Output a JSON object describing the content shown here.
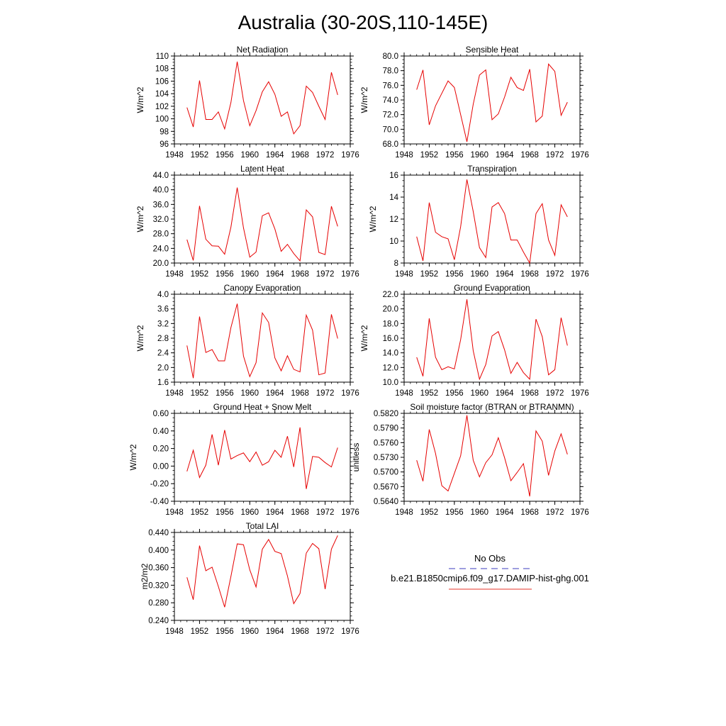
{
  "figure": {
    "title": "Australia (30-20S,110-145E)"
  },
  "legend": {
    "entries": [
      {
        "label": "No Obs",
        "color": "#3b3bbf",
        "dash": "dashed"
      },
      {
        "label": "b.e21.B1850cmip6.f09_g17.DAMIP-hist-ghg.001",
        "color": "#e6332a",
        "dash": "solid"
      }
    ]
  },
  "colors": {
    "series": "#e60000",
    "axis": "#000000"
  },
  "chart_data": [
    {
      "type": "line",
      "title": "Net Radiation",
      "ylabel": "W/m^2",
      "xlim": [
        1948,
        1976
      ],
      "ylim": [
        96,
        110
      ],
      "xticks": [
        "1948",
        "1952",
        "1956",
        "1960",
        "1964",
        "1968",
        "1972",
        "1976"
      ],
      "yticks": [
        "96",
        "98",
        "100",
        "102",
        "104",
        "106",
        "108",
        "110"
      ],
      "x": [
        1950,
        1951,
        1952,
        1953,
        1954,
        1955,
        1956,
        1957,
        1958,
        1959,
        1960,
        1961,
        1962,
        1963,
        1964,
        1965,
        1966,
        1967,
        1968,
        1969,
        1970,
        1971,
        1972,
        1973,
        1974
      ],
      "values": [
        101.8,
        98.7,
        106.1,
        99.9,
        99.9,
        101.1,
        98.4,
        102.6,
        109.1,
        102.9,
        98.9,
        101.3,
        104.3,
        105.9,
        103.9,
        100.4,
        101.1,
        97.6,
        98.9,
        105.2,
        104.2,
        102.0,
        99.9,
        107.4,
        103.8
      ],
      "grid": false
    },
    {
      "type": "line",
      "title": "Sensible Heat",
      "ylabel": "W/m^2",
      "xlim": [
        1948,
        1976
      ],
      "ylim": [
        68,
        80
      ],
      "xticks": [
        "1948",
        "1952",
        "1956",
        "1960",
        "1964",
        "1968",
        "1972",
        "1976"
      ],
      "yticks": [
        "68.0",
        "70.0",
        "72.0",
        "74.0",
        "76.0",
        "78.0",
        "80.0"
      ],
      "x": [
        1950,
        1951,
        1952,
        1953,
        1954,
        1955,
        1956,
        1957,
        1958,
        1959,
        1960,
        1961,
        1962,
        1963,
        1964,
        1965,
        1966,
        1967,
        1968,
        1969,
        1970,
        1971,
        1972,
        1973,
        1974
      ],
      "values": [
        75.4,
        78.1,
        70.6,
        73.2,
        74.9,
        76.6,
        75.7,
        72.0,
        68.3,
        73.4,
        77.4,
        78.1,
        71.3,
        72.1,
        74.4,
        77.1,
        75.7,
        75.3,
        78.2,
        71.0,
        71.8,
        78.9,
        77.9,
        71.9,
        73.7
      ],
      "grid": false
    },
    {
      "type": "line",
      "title": "Latent Heat",
      "ylabel": "W/m^2",
      "xlim": [
        1948,
        1976
      ],
      "ylim": [
        20,
        44
      ],
      "xticks": [
        "1948",
        "1952",
        "1956",
        "1960",
        "1964",
        "1968",
        "1972",
        "1976"
      ],
      "yticks": [
        "20.0",
        "24.0",
        "28.0",
        "32.0",
        "36.0",
        "40.0",
        "44.0"
      ],
      "x": [
        1950,
        1951,
        1952,
        1953,
        1954,
        1955,
        1956,
        1957,
        1958,
        1959,
        1960,
        1961,
        1962,
        1963,
        1964,
        1965,
        1966,
        1967,
        1968,
        1969,
        1970,
        1971,
        1972,
        1973,
        1974
      ],
      "values": [
        26.4,
        20.7,
        35.6,
        26.5,
        24.7,
        24.6,
        22.4,
        29.8,
        40.6,
        29.6,
        21.6,
        23.0,
        32.9,
        33.7,
        29.3,
        23.2,
        25.1,
        22.6,
        20.6,
        34.5,
        32.6,
        22.9,
        22.3,
        35.5,
        30.0
      ],
      "grid": false
    },
    {
      "type": "line",
      "title": "Transpiration",
      "ylabel": "W/m^2",
      "xlim": [
        1948,
        1976
      ],
      "ylim": [
        8,
        16
      ],
      "xticks": [
        "1948",
        "1952",
        "1956",
        "1960",
        "1964",
        "1968",
        "1972",
        "1976"
      ],
      "yticks": [
        "8",
        "10",
        "12",
        "14",
        "16"
      ],
      "x": [
        1950,
        1951,
        1952,
        1953,
        1954,
        1955,
        1956,
        1957,
        1958,
        1959,
        1960,
        1961,
        1962,
        1963,
        1964,
        1965,
        1966,
        1967,
        1968,
        1969,
        1970,
        1971,
        1972,
        1973,
        1974
      ],
      "values": [
        10.4,
        8.2,
        13.5,
        10.8,
        10.4,
        10.2,
        8.3,
        11.3,
        15.6,
        12.7,
        9.4,
        8.5,
        13.1,
        13.5,
        12.5,
        10.1,
        10.1,
        9.0,
        8.0,
        12.5,
        13.4,
        10.1,
        8.7,
        13.3,
        12.2
      ],
      "grid": false
    },
    {
      "type": "line",
      "title": "Canopy Evaporation",
      "ylabel": "W/m^2",
      "xlim": [
        1948,
        1976
      ],
      "ylim": [
        1.6,
        4.0
      ],
      "xticks": [
        "1948",
        "1952",
        "1956",
        "1960",
        "1964",
        "1968",
        "1972",
        "1976"
      ],
      "yticks": [
        "1.6",
        "2.0",
        "2.4",
        "2.8",
        "3.2",
        "3.6",
        "4.0"
      ],
      "x": [
        1950,
        1951,
        1952,
        1953,
        1954,
        1955,
        1956,
        1957,
        1958,
        1959,
        1960,
        1961,
        1962,
        1963,
        1964,
        1965,
        1966,
        1967,
        1968,
        1969,
        1970,
        1971,
        1972,
        1973,
        1974
      ],
      "values": [
        2.6,
        1.71,
        3.39,
        2.41,
        2.49,
        2.18,
        2.18,
        3.09,
        3.74,
        2.31,
        1.75,
        2.13,
        3.49,
        3.23,
        2.26,
        1.91,
        2.32,
        1.95,
        1.88,
        3.43,
        3.02,
        1.8,
        1.85,
        3.45,
        2.79
      ],
      "grid": false
    },
    {
      "type": "line",
      "title": "Ground Evaporation",
      "ylabel": "W/m^2",
      "xlim": [
        1948,
        1976
      ],
      "ylim": [
        10,
        22
      ],
      "xticks": [
        "1948",
        "1952",
        "1956",
        "1960",
        "1964",
        "1968",
        "1972",
        "1976"
      ],
      "yticks": [
        "10.0",
        "12.0",
        "14.0",
        "16.0",
        "18.0",
        "20.0",
        "22.0"
      ],
      "x": [
        1950,
        1951,
        1952,
        1953,
        1954,
        1955,
        1956,
        1957,
        1958,
        1959,
        1960,
        1961,
        1962,
        1963,
        1964,
        1965,
        1966,
        1967,
        1968,
        1969,
        1970,
        1971,
        1972,
        1973,
        1974
      ],
      "values": [
        13.4,
        10.8,
        18.7,
        13.4,
        11.7,
        12.1,
        11.8,
        15.8,
        21.3,
        14.3,
        10.4,
        12.4,
        16.3,
        16.9,
        14.4,
        11.2,
        12.7,
        11.3,
        10.4,
        18.6,
        16.2,
        11.0,
        11.7,
        18.8,
        15.0
      ],
      "grid": false
    },
    {
      "type": "line",
      "title": "Ground Heat + Snow Melt",
      "ylabel": "W/m^2",
      "xlim": [
        1948,
        1976
      ],
      "ylim": [
        -0.4,
        0.6
      ],
      "xticks": [
        "1948",
        "1952",
        "1956",
        "1960",
        "1964",
        "1968",
        "1972",
        "1976"
      ],
      "yticks": [
        "-0.40",
        "-0.20",
        "0.00",
        "0.20",
        "0.40",
        "0.60"
      ],
      "x": [
        1950,
        1951,
        1952,
        1953,
        1954,
        1955,
        1956,
        1957,
        1958,
        1959,
        1960,
        1961,
        1962,
        1963,
        1964,
        1965,
        1966,
        1967,
        1968,
        1969,
        1970,
        1971,
        1972,
        1973,
        1974
      ],
      "values": [
        -0.06,
        0.18,
        -0.13,
        0.01,
        0.36,
        0.01,
        0.41,
        0.08,
        0.12,
        0.15,
        0.05,
        0.16,
        0.01,
        0.05,
        0.18,
        0.1,
        0.34,
        -0.01,
        0.44,
        -0.26,
        0.11,
        0.1,
        0.04,
        -0.01,
        0.21
      ],
      "grid": false
    },
    {
      "type": "line",
      "title": "Soil moisture factor (BTRAN or BTRANMN)",
      "ylabel": "unitless",
      "xlim": [
        1948,
        1976
      ],
      "ylim": [
        0.564,
        0.582
      ],
      "xticks": [
        "1948",
        "1952",
        "1956",
        "1960",
        "1964",
        "1968",
        "1972",
        "1976"
      ],
      "yticks": [
        "0.5640",
        "0.5670",
        "0.5700",
        "0.5730",
        "0.5760",
        "0.5790",
        "0.5820"
      ],
      "x": [
        1950,
        1951,
        1952,
        1953,
        1954,
        1955,
        1956,
        1957,
        1958,
        1959,
        1960,
        1961,
        1962,
        1963,
        1964,
        1965,
        1966,
        1967,
        1968,
        1969,
        1970,
        1971,
        1972,
        1973,
        1974
      ],
      "values": [
        0.5724,
        0.5681,
        0.5787,
        0.5738,
        0.5672,
        0.5661,
        0.5697,
        0.5733,
        0.5816,
        0.5724,
        0.569,
        0.5719,
        0.5735,
        0.577,
        0.5729,
        0.5682,
        0.5699,
        0.5717,
        0.565,
        0.5784,
        0.5763,
        0.5693,
        0.5743,
        0.5778,
        0.5736
      ],
      "grid": false
    },
    {
      "type": "line",
      "title": "Total LAI",
      "ylabel": "m2/m2",
      "xlim": [
        1948,
        1976
      ],
      "ylim": [
        0.24,
        0.44
      ],
      "xticks": [
        "1948",
        "1952",
        "1956",
        "1960",
        "1964",
        "1968",
        "1972",
        "1976"
      ],
      "yticks": [
        "0.240",
        "0.280",
        "0.320",
        "0.360",
        "0.400",
        "0.440"
      ],
      "x": [
        1950,
        1951,
        1952,
        1953,
        1954,
        1955,
        1956,
        1957,
        1958,
        1959,
        1960,
        1961,
        1962,
        1963,
        1964,
        1965,
        1966,
        1967,
        1968,
        1969,
        1970,
        1971,
        1972,
        1973,
        1974
      ],
      "values": [
        0.338,
        0.287,
        0.41,
        0.353,
        0.361,
        0.317,
        0.27,
        0.34,
        0.414,
        0.412,
        0.355,
        0.316,
        0.402,
        0.424,
        0.397,
        0.392,
        0.341,
        0.278,
        0.301,
        0.393,
        0.415,
        0.403,
        0.311,
        0.402,
        0.433
      ],
      "grid": false
    }
  ]
}
